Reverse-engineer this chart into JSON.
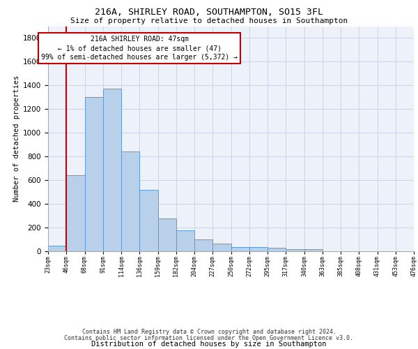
{
  "title_line1": "216A, SHIRLEY ROAD, SOUTHAMPTON, SO15 3FL",
  "title_line2": "Size of property relative to detached houses in Southampton",
  "xlabel": "Distribution of detached houses by size in Southampton",
  "ylabel": "Number of detached properties",
  "bar_values": [
    50,
    645,
    1300,
    1370,
    845,
    520,
    275,
    175,
    103,
    63,
    38,
    35,
    28,
    18,
    18,
    0,
    0,
    0,
    0,
    0
  ],
  "bin_labels": [
    "23sqm",
    "46sqm",
    "68sqm",
    "91sqm",
    "114sqm",
    "136sqm",
    "159sqm",
    "182sqm",
    "204sqm",
    "227sqm",
    "250sqm",
    "272sqm",
    "295sqm",
    "317sqm",
    "340sqm",
    "363sqm",
    "385sqm",
    "408sqm",
    "431sqm",
    "453sqm",
    "476sqm"
  ],
  "bar_color": "#b8d0ea",
  "bar_edge_color": "#5b9bd5",
  "vline_color": "#c00000",
  "vline_x": 1,
  "annotation_text": "216A SHIRLEY ROAD: 47sqm\n← 1% of detached houses are smaller (47)\n99% of semi-detached houses are larger (5,372) →",
  "annotation_color": "#c00000",
  "ylim": [
    0,
    1900
  ],
  "yticks": [
    0,
    200,
    400,
    600,
    800,
    1000,
    1200,
    1400,
    1600,
    1800
  ],
  "background_color": "#edf1f9",
  "grid_color": "#c8cfe0",
  "footer_line1": "Contains HM Land Registry data © Crown copyright and database right 2024.",
  "footer_line2": "Contains public sector information licensed under the Open Government Licence v3.0."
}
